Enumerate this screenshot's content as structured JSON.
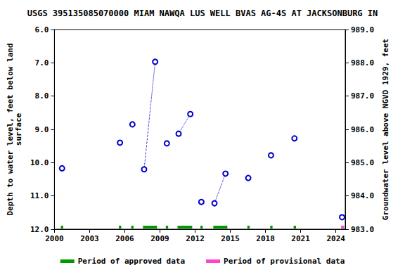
{
  "chart_data": {
    "type": "scatter",
    "title": "USGS 395135085070000 MIAM NAWQA LUS WELL BVAS AG-4S AT JACKSONBURG IN",
    "y_label": "Depth to water level, feet below land\nsurface",
    "y2_label": "Groundwater level above NGVD 1929, feet",
    "x": [
      2000.65,
      null,
      2005.59,
      null,
      2006.65,
      null,
      2007.65,
      2008.59,
      null,
      2009.59,
      null,
      2010.59,
      2011.59,
      null,
      2012.53,
      null,
      2013.65,
      2014.59,
      null,
      2016.53,
      null,
      2018.47,
      null,
      2020.47,
      null,
      2024.53
    ],
    "values": [
      10.17,
      null,
      9.4,
      null,
      8.85,
      null,
      10.2,
      6.97,
      null,
      9.42,
      null,
      9.13,
      8.54,
      null,
      11.18,
      null,
      11.22,
      10.33,
      null,
      10.46,
      null,
      9.78,
      null,
      9.27,
      null,
      11.64
    ],
    "color": "#0000cc",
    "marker": "circle",
    "line_style": "dotted",
    "xlim": [
      2000,
      2024.8
    ],
    "xticks": [
      2000,
      2003,
      2006,
      2009,
      2012,
      2015,
      2018,
      2021,
      2024
    ],
    "ylim": [
      12,
      6
    ],
    "yticks": [
      {
        "value": 6,
        "label": "6.0"
      },
      {
        "value": 7,
        "label": "7.0"
      },
      {
        "value": 8,
        "label": "8.0"
      },
      {
        "value": 9,
        "label": "9.0"
      },
      {
        "value": 10,
        "label": "10.0"
      },
      {
        "value": 11,
        "label": "11.0"
      },
      {
        "value": 12,
        "label": "12.0"
      }
    ],
    "y2lim": [
      983,
      989
    ],
    "y2ticks": [
      {
        "value": 983,
        "label": "983.0"
      },
      {
        "value": 984,
        "label": "984.0"
      },
      {
        "value": 985,
        "label": "985.0"
      },
      {
        "value": 986,
        "label": "986.0"
      },
      {
        "value": 987,
        "label": "987.0"
      },
      {
        "value": 988,
        "label": "988.0"
      },
      {
        "value": 989,
        "label": "989.0"
      }
    ],
    "series": [
      {
        "name": "Period of approved data",
        "color": "#009900",
        "periods": [
          [
            2000.55,
            2000.75
          ],
          [
            2005.5,
            2005.7
          ],
          [
            2006.55,
            2006.75
          ],
          [
            2007.55,
            2008.75
          ],
          [
            2009.5,
            2009.7
          ],
          [
            2010.5,
            2011.75
          ],
          [
            2012.45,
            2012.65
          ],
          [
            2013.55,
            2014.75
          ],
          [
            2016.45,
            2016.65
          ],
          [
            2018.4,
            2018.6
          ],
          [
            2020.4,
            2020.6
          ]
        ]
      },
      {
        "name": "Period of provisional data",
        "color": "#ff44cc",
        "periods": [
          [
            2024.45,
            2024.7
          ]
        ]
      }
    ],
    "legend": "bottom"
  }
}
